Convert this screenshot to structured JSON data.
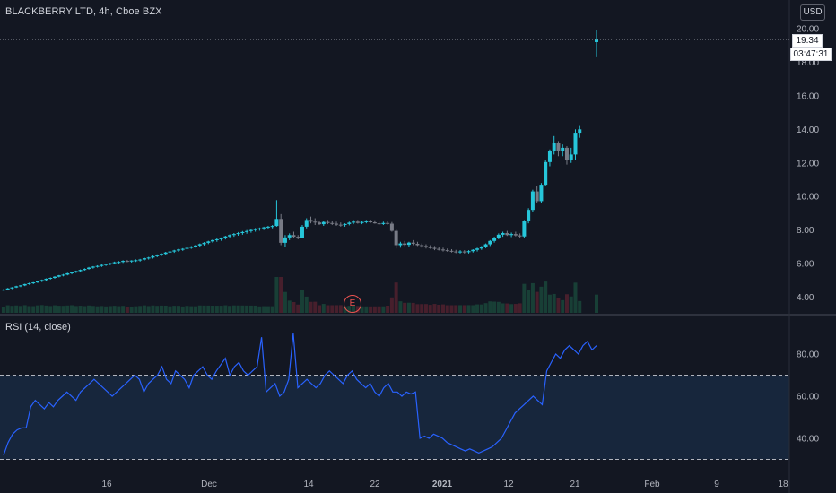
{
  "header": {
    "symbol_title": "BLACKBERRY LTD, 4h, Cboe BZX",
    "currency": "USD"
  },
  "price_badge": "19.34",
  "countdown_badge": "03:47:31",
  "earnings_marker": "E",
  "rsi_title": "RSI (14, close)",
  "colors": {
    "background": "#131722",
    "up": "#26c6da",
    "down": "#787b86",
    "rsi_line": "#2962ff",
    "rsi_band": "#1c3a5e",
    "grid": "#2a2e39"
  },
  "chart_data": [
    {
      "type": "candlestick",
      "title": "BLACKBERRY LTD, 4h, Cboe BZX",
      "ylim": [
        3.2,
        20.3
      ],
      "y_ticks": [
        "20.00",
        "18.00",
        "16.00",
        "14.00",
        "12.00",
        "10.00",
        "8.00",
        "6.00",
        "4.00"
      ],
      "x_ticks": [
        "16",
        "Dec",
        "14",
        "22",
        "2021",
        "12",
        "21",
        "Feb",
        "9",
        "18"
      ],
      "last_price": 19.34,
      "candles": [
        [
          4.42,
          4.48,
          4.38,
          4.45
        ],
        [
          4.45,
          4.55,
          4.42,
          4.52
        ],
        [
          4.52,
          4.6,
          4.48,
          4.58
        ],
        [
          4.58,
          4.68,
          4.55,
          4.65
        ],
        [
          4.65,
          4.72,
          4.6,
          4.7
        ],
        [
          4.7,
          4.8,
          4.66,
          4.78
        ],
        [
          4.78,
          4.86,
          4.74,
          4.83
        ],
        [
          4.83,
          4.9,
          4.78,
          4.88
        ],
        [
          4.88,
          4.98,
          4.84,
          4.95
        ],
        [
          4.95,
          5.05,
          4.9,
          5.02
        ],
        [
          5.02,
          5.12,
          4.98,
          5.1
        ],
        [
          5.1,
          5.18,
          5.05,
          5.15
        ],
        [
          5.15,
          5.25,
          5.1,
          5.22
        ],
        [
          5.22,
          5.32,
          5.18,
          5.3
        ],
        [
          5.3,
          5.38,
          5.24,
          5.34
        ],
        [
          5.34,
          5.45,
          5.3,
          5.42
        ],
        [
          5.42,
          5.52,
          5.36,
          5.48
        ],
        [
          5.48,
          5.58,
          5.44,
          5.55
        ],
        [
          5.55,
          5.65,
          5.5,
          5.62
        ],
        [
          5.62,
          5.72,
          5.58,
          5.68
        ],
        [
          5.68,
          5.8,
          5.64,
          5.76
        ],
        [
          5.76,
          5.85,
          5.7,
          5.82
        ],
        [
          5.82,
          5.9,
          5.76,
          5.86
        ],
        [
          5.86,
          5.95,
          5.8,
          5.92
        ],
        [
          5.92,
          6.0,
          5.86,
          5.97
        ],
        [
          5.97,
          6.05,
          5.9,
          6.02
        ],
        [
          6.02,
          6.12,
          5.96,
          6.08
        ],
        [
          6.08,
          6.15,
          6.0,
          6.1
        ],
        [
          6.1,
          6.2,
          6.04,
          6.16
        ],
        [
          6.16,
          6.22,
          6.08,
          6.13
        ],
        [
          6.13,
          6.2,
          6.06,
          6.18
        ],
        [
          6.18,
          6.25,
          6.1,
          6.2
        ],
        [
          6.2,
          6.28,
          6.12,
          6.24
        ],
        [
          6.24,
          6.36,
          6.18,
          6.32
        ],
        [
          6.32,
          6.4,
          6.24,
          6.36
        ],
        [
          6.36,
          6.48,
          6.3,
          6.44
        ],
        [
          6.44,
          6.55,
          6.38,
          6.5
        ],
        [
          6.5,
          6.62,
          6.44,
          6.58
        ],
        [
          6.58,
          6.7,
          6.52,
          6.66
        ],
        [
          6.66,
          6.76,
          6.6,
          6.72
        ],
        [
          6.72,
          6.82,
          6.64,
          6.78
        ],
        [
          6.78,
          6.88,
          6.7,
          6.84
        ],
        [
          6.84,
          6.92,
          6.76,
          6.88
        ],
        [
          6.88,
          6.98,
          6.8,
          6.94
        ],
        [
          6.94,
          7.05,
          6.88,
          7.02
        ],
        [
          7.02,
          7.12,
          6.95,
          7.08
        ],
        [
          7.08,
          7.2,
          7.0,
          7.16
        ],
        [
          7.16,
          7.28,
          7.08,
          7.24
        ],
        [
          7.24,
          7.36,
          7.16,
          7.32
        ],
        [
          7.32,
          7.44,
          7.24,
          7.4
        ],
        [
          7.4,
          7.5,
          7.3,
          7.45
        ],
        [
          7.45,
          7.56,
          7.36,
          7.52
        ],
        [
          7.52,
          7.66,
          7.44,
          7.62
        ],
        [
          7.62,
          7.74,
          7.54,
          7.7
        ],
        [
          7.7,
          7.82,
          7.6,
          7.76
        ],
        [
          7.76,
          7.88,
          7.66,
          7.82
        ],
        [
          7.82,
          7.94,
          7.72,
          7.88
        ],
        [
          7.88,
          8.0,
          7.78,
          7.94
        ],
        [
          7.94,
          8.06,
          7.84,
          8.0
        ],
        [
          8.0,
          8.12,
          7.9,
          8.06
        ],
        [
          8.06,
          8.15,
          7.96,
          8.1
        ],
        [
          8.1,
          8.2,
          8.0,
          8.16
        ],
        [
          8.16,
          8.25,
          8.05,
          8.2
        ],
        [
          8.2,
          8.3,
          8.1,
          8.24
        ],
        [
          8.24,
          9.78,
          8.2,
          8.66
        ],
        [
          8.66,
          8.95,
          7.1,
          7.24
        ],
        [
          7.24,
          7.7,
          7.0,
          7.56
        ],
        [
          7.56,
          7.8,
          7.4,
          7.7
        ],
        [
          7.7,
          7.9,
          7.55,
          7.6
        ],
        [
          7.6,
          7.7,
          7.45,
          7.52
        ],
        [
          7.52,
          8.3,
          7.5,
          8.2
        ],
        [
          8.2,
          8.7,
          8.1,
          8.6
        ],
        [
          8.6,
          8.8,
          8.4,
          8.5
        ],
        [
          8.5,
          8.7,
          8.3,
          8.45
        ],
        [
          8.45,
          8.55,
          8.3,
          8.35
        ],
        [
          8.35,
          8.55,
          8.25,
          8.48
        ],
        [
          8.48,
          8.6,
          8.35,
          8.42
        ],
        [
          8.42,
          8.55,
          8.3,
          8.38
        ],
        [
          8.38,
          8.5,
          8.25,
          8.32
        ],
        [
          8.32,
          8.45,
          8.2,
          8.3
        ],
        [
          8.3,
          8.4,
          8.2,
          8.36
        ],
        [
          8.36,
          8.5,
          8.28,
          8.44
        ],
        [
          8.44,
          8.6,
          8.35,
          8.5
        ],
        [
          8.5,
          8.6,
          8.38,
          8.42
        ],
        [
          8.42,
          8.55,
          8.35,
          8.48
        ],
        [
          8.48,
          8.6,
          8.4,
          8.52
        ],
        [
          8.52,
          8.62,
          8.42,
          8.46
        ],
        [
          8.46,
          8.58,
          8.38,
          8.4
        ],
        [
          8.4,
          8.5,
          8.3,
          8.36
        ],
        [
          8.36,
          8.5,
          8.3,
          8.42
        ],
        [
          8.42,
          8.55,
          8.32,
          8.38
        ],
        [
          8.38,
          8.48,
          7.9,
          7.95
        ],
        [
          7.95,
          8.05,
          6.9,
          7.1
        ],
        [
          7.1,
          7.3,
          6.95,
          7.2
        ],
        [
          7.2,
          7.35,
          7.05,
          7.12
        ],
        [
          7.12,
          7.3,
          7.0,
          7.25
        ],
        [
          7.25,
          7.4,
          7.1,
          7.18
        ],
        [
          7.18,
          7.3,
          7.05,
          7.1
        ],
        [
          7.1,
          7.2,
          6.95,
          7.05
        ],
        [
          7.05,
          7.15,
          6.9,
          6.98
        ],
        [
          6.98,
          7.1,
          6.88,
          6.94
        ],
        [
          6.94,
          7.05,
          6.8,
          6.88
        ],
        [
          6.88,
          7.0,
          6.78,
          6.84
        ],
        [
          6.84,
          6.95,
          6.72,
          6.8
        ],
        [
          6.8,
          6.9,
          6.7,
          6.76
        ],
        [
          6.76,
          6.86,
          6.66,
          6.72
        ],
        [
          6.72,
          6.82,
          6.62,
          6.7
        ],
        [
          6.7,
          6.8,
          6.6,
          6.72
        ],
        [
          6.72,
          6.8,
          6.6,
          6.68
        ],
        [
          6.68,
          6.8,
          6.6,
          6.74
        ],
        [
          6.74,
          6.86,
          6.66,
          6.82
        ],
        [
          6.82,
          6.95,
          6.72,
          6.9
        ],
        [
          6.9,
          7.05,
          6.82,
          7.0
        ],
        [
          7.0,
          7.2,
          6.92,
          7.15
        ],
        [
          7.15,
          7.4,
          7.05,
          7.35
        ],
        [
          7.35,
          7.6,
          7.25,
          7.55
        ],
        [
          7.55,
          7.8,
          7.45,
          7.72
        ],
        [
          7.72,
          7.9,
          7.6,
          7.82
        ],
        [
          7.82,
          7.95,
          7.65,
          7.7
        ],
        [
          7.7,
          7.85,
          7.58,
          7.76
        ],
        [
          7.76,
          7.9,
          7.62,
          7.68
        ],
        [
          7.68,
          7.8,
          7.5,
          7.62
        ],
        [
          7.62,
          8.6,
          7.55,
          8.55
        ],
        [
          8.55,
          9.3,
          8.4,
          9.2
        ],
        [
          9.2,
          10.4,
          9.1,
          10.3
        ],
        [
          10.3,
          10.6,
          9.6,
          9.72
        ],
        [
          9.72,
          10.8,
          9.6,
          10.7
        ],
        [
          10.7,
          12.2,
          10.6,
          12.05
        ],
        [
          12.05,
          12.8,
          11.8,
          12.7
        ],
        [
          12.7,
          13.6,
          12.5,
          13.2
        ],
        [
          13.2,
          13.3,
          12.4,
          12.7
        ],
        [
          12.7,
          13.1,
          12.4,
          12.9
        ],
        [
          12.9,
          13.0,
          11.9,
          12.2
        ],
        [
          12.2,
          12.9,
          12.0,
          12.5
        ],
        [
          12.5,
          14.0,
          12.2,
          13.8
        ],
        [
          13.8,
          14.2,
          13.5,
          14.0
        ],
        [
          19.2,
          19.9,
          18.3,
          19.34
        ]
      ]
    },
    {
      "type": "line",
      "title": "RSI (14, close)",
      "ylim": [
        25,
        95
      ],
      "y_ticks": [
        "80.00",
        "60.00",
        "40.00"
      ],
      "band": [
        30,
        70
      ],
      "values": [
        32,
        38,
        42,
        44,
        45,
        45,
        55,
        58,
        56,
        54,
        57,
        55,
        58,
        60,
        62,
        60,
        58,
        62,
        64,
        66,
        68,
        66,
        64,
        62,
        60,
        62,
        64,
        66,
        68,
        70,
        68,
        62,
        66,
        68,
        70,
        74,
        68,
        66,
        72,
        70,
        68,
        64,
        70,
        72,
        74,
        70,
        68,
        72,
        75,
        78,
        70,
        74,
        76,
        72,
        70,
        72,
        74,
        88,
        62,
        64,
        66,
        60,
        62,
        68,
        90,
        64,
        66,
        68,
        66,
        64,
        66,
        70,
        72,
        70,
        68,
        66,
        70,
        72,
        68,
        66,
        64,
        66,
        62,
        60,
        64,
        66,
        62,
        62,
        60,
        62,
        61,
        62,
        40,
        41,
        40,
        42,
        41,
        40,
        38,
        37,
        36,
        35,
        34,
        35,
        34,
        33,
        34,
        35,
        36,
        38,
        40,
        44,
        48,
        52,
        54,
        56,
        58,
        60,
        58,
        56,
        72,
        76,
        80,
        78,
        82,
        84,
        82,
        80,
        84,
        86,
        82,
        84
      ]
    }
  ]
}
